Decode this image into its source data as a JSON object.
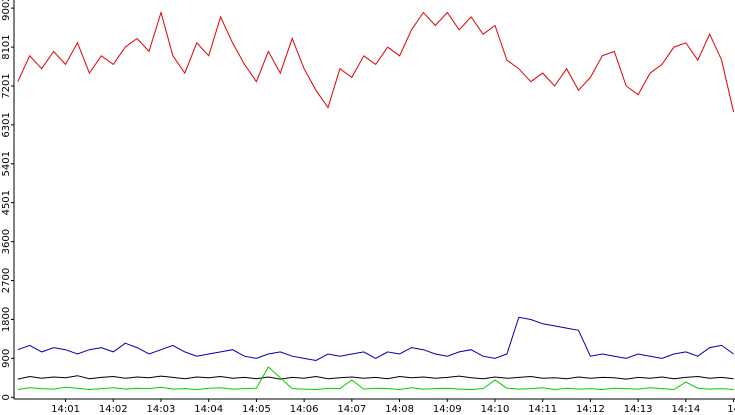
{
  "chart_data": {
    "type": "line",
    "x": [
      0,
      0.25,
      0.5,
      0.75,
      1,
      1.25,
      1.5,
      1.75,
      2,
      2.25,
      2.5,
      2.75,
      3,
      3.25,
      3.5,
      3.75,
      4,
      4.25,
      4.5,
      4.75,
      5,
      5.25,
      5.5,
      5.75,
      6,
      6.25,
      6.5,
      6.75,
      7,
      7.25,
      7.5,
      7.75,
      8,
      8.25,
      8.5,
      8.75,
      9,
      9.25,
      9.5,
      9.75,
      10,
      10.25,
      10.5,
      10.75,
      11,
      11.25,
      11.5,
      11.75,
      12,
      12.25,
      12.5,
      12.75,
      13,
      13.25,
      13.5,
      13.75,
      14,
      14.25,
      14.5,
      14.75,
      15
    ],
    "series": [
      {
        "color": "#e00000",
        "values": [
          7300,
          7900,
          7600,
          8000,
          7700,
          8200,
          7500,
          7900,
          7700,
          8100,
          8300,
          8000,
          8900,
          7900,
          7500,
          8200,
          7900,
          8800,
          8200,
          7700,
          7300,
          8000,
          7500,
          8300,
          7600,
          7100,
          6700,
          7600,
          7400,
          7900,
          7700,
          8100,
          7900,
          8500,
          8900,
          8600,
          8900,
          8500,
          8800,
          8400,
          8600,
          7800,
          7600,
          7300,
          7500,
          7200,
          7600,
          7100,
          7400,
          7900,
          8000,
          7200,
          7000,
          7500,
          7700,
          8100,
          8200,
          7800,
          8400,
          7800,
          6600
        ]
      },
      {
        "color": "#0000b0",
        "values": [
          1100,
          1200,
          1050,
          1150,
          1100,
          1000,
          1100,
          1150,
          1050,
          1250,
          1150,
          1000,
          1100,
          1200,
          1050,
          950,
          1000,
          1050,
          1100,
          950,
          900,
          1000,
          1050,
          950,
          900,
          850,
          1000,
          950,
          1000,
          1050,
          900,
          1050,
          1000,
          1150,
          1100,
          1000,
          950,
          1050,
          1100,
          950,
          900,
          1000,
          1850,
          1800,
          1700,
          1650,
          1600,
          1550,
          950,
          1000,
          950,
          900,
          1000,
          950,
          900,
          1000,
          1050,
          950,
          1150,
          1200,
          1000
        ]
      },
      {
        "color": "#000000",
        "values": [
          420,
          480,
          440,
          470,
          450,
          500,
          430,
          460,
          480,
          440,
          470,
          450,
          490,
          460,
          430,
          470,
          450,
          480,
          440,
          460,
          430,
          470,
          420,
          460,
          440,
          480,
          430,
          450,
          470,
          440,
          460,
          430,
          480,
          450,
          470,
          440,
          460,
          490,
          450,
          430,
          470,
          440,
          460,
          480,
          440,
          450,
          430,
          470,
          440,
          460,
          450,
          420,
          460,
          440,
          470,
          430,
          460,
          480,
          440,
          460,
          430
        ]
      },
      {
        "color": "#00d000",
        "values": [
          180,
          220,
          200,
          190,
          230,
          210,
          180,
          200,
          220,
          190,
          210,
          200,
          230,
          190,
          200,
          180,
          210,
          220,
          190,
          200,
          210,
          700,
          450,
          200,
          190,
          180,
          210,
          200,
          400,
          190,
          210,
          200,
          180,
          220,
          190,
          200,
          210,
          190,
          180,
          200,
          400,
          210,
          190,
          200,
          220,
          180,
          210,
          190,
          200,
          180,
          210,
          200,
          190,
          220,
          200,
          180,
          350,
          210,
          190,
          200,
          180
        ]
      }
    ],
    "xlim": [
      -0.08,
      15.03
    ],
    "xticks": [
      {
        "value": 1,
        "label": "14:01"
      },
      {
        "value": 2,
        "label": "14:02"
      },
      {
        "value": 3,
        "label": "14:03"
      },
      {
        "value": 4,
        "label": "14:04"
      },
      {
        "value": 5,
        "label": "14:05"
      },
      {
        "value": 6,
        "label": "14:06"
      },
      {
        "value": 7,
        "label": "14:07"
      },
      {
        "value": 8,
        "label": "14:08"
      },
      {
        "value": 9,
        "label": "14:09"
      },
      {
        "value": 10,
        "label": "14:10"
      },
      {
        "value": 11,
        "label": "14:11"
      },
      {
        "value": 12,
        "label": "14:12"
      },
      {
        "value": 13,
        "label": "14:13"
      },
      {
        "value": 14,
        "label": "14:14"
      },
      {
        "value": 15,
        "label": "14"
      }
    ],
    "ylim": [
      -40,
      9190
    ],
    "yticks": [
      0,
      900,
      1800,
      2700,
      3600,
      4501,
      5401,
      6301,
      7201,
      8101,
      9002
    ]
  }
}
